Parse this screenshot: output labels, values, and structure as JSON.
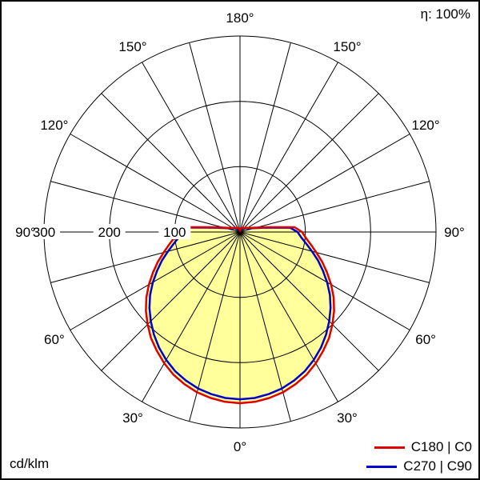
{
  "labels": {
    "efficiency": "η: 100%",
    "units": "cd/klm"
  },
  "chart_data": {
    "type": "polar",
    "title": "",
    "units": "cd/klm",
    "efficiency": "η: 100%",
    "grid_color": "#000000",
    "fill_color": "#ffff9c",
    "angle_grid_step_deg": 15,
    "radial_axis": {
      "max": 300,
      "ticks": [
        100,
        200,
        300
      ],
      "tick_labels": [
        "100",
        "200",
        "300"
      ]
    },
    "angle_labels": [
      {
        "gamma": 0,
        "text": "0°"
      },
      {
        "gamma": 30,
        "text": "30°"
      },
      {
        "gamma": 60,
        "text": "60°"
      },
      {
        "gamma": 90,
        "text": "90°"
      },
      {
        "gamma": 120,
        "text": "120°"
      },
      {
        "gamma": 150,
        "text": "150°"
      },
      {
        "gamma": 180,
        "text": "180°"
      }
    ],
    "gamma_deg": [
      0,
      5,
      10,
      15,
      20,
      25,
      30,
      35,
      40,
      45,
      50,
      55,
      60,
      65,
      70,
      75,
      80,
      85,
      90,
      95,
      100,
      105,
      110,
      115,
      120,
      125,
      130,
      135,
      140,
      145,
      150,
      155,
      160,
      165,
      170,
      175,
      180
    ],
    "series": [
      {
        "name": "C180 | C0",
        "plane": "c0-c180",
        "color": "#dd0000",
        "values": [
          262,
          261,
          258,
          254,
          248,
          241,
          232,
          222,
          212,
          200,
          188,
          175,
          161,
          147,
          134,
          121,
          110,
          101,
          95,
          84,
          42,
          26,
          19,
          15,
          13,
          11,
          10,
          9,
          8,
          8,
          7,
          7,
          6,
          5,
          4,
          3,
          2
        ]
      },
      {
        "name": "C270 | C90",
        "plane": "c90-c270",
        "color": "#0000cc",
        "values": [
          256,
          255,
          252,
          248,
          242,
          235,
          226,
          216,
          205,
          193,
          181,
          168,
          154,
          140,
          127,
          114,
          103,
          94,
          88,
          77,
          38,
          23,
          17,
          13,
          11,
          10,
          9,
          8,
          7,
          7,
          6,
          6,
          5,
          5,
          4,
          3,
          2
        ]
      }
    ]
  }
}
